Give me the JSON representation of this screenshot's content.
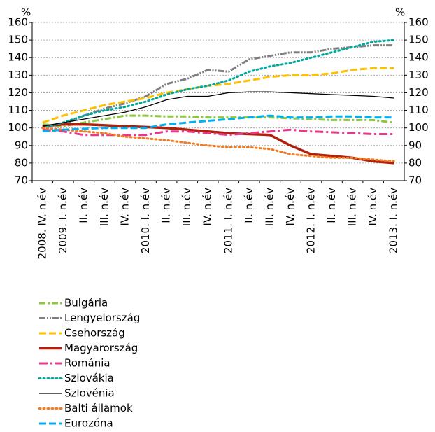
{
  "chart_data": {
    "type": "line",
    "y_label": "%",
    "y2_label": "%",
    "categories": [
      "2008. IV. n.év",
      "2009. I. n.év",
      "II. n.év",
      "III. n.év",
      "IV. n.év",
      "2010. I. n.év",
      "II. n.év",
      "III. n.év",
      "IV. n.év",
      "2011. I. n.év",
      "II. n.év",
      "III. n.év",
      "IV. n.év",
      "2012. I. n.év",
      "II. n.év",
      "III. n.év",
      "IV. n.év",
      "2013. I. n.év"
    ],
    "ylim": [
      70,
      160
    ],
    "yticks": [
      70,
      80,
      90,
      100,
      110,
      120,
      130,
      140,
      150,
      160
    ],
    "y2lim": [
      70,
      160
    ],
    "y2ticks": [
      70,
      80,
      90,
      100,
      110,
      120,
      130,
      140,
      150,
      160
    ],
    "grid": true,
    "series": [
      {
        "name": "Bulgária",
        "color": "#8dc63f",
        "line_style": "dash-dot",
        "values": [
          102,
          101,
          103,
          105,
          107,
          107,
          106.5,
          106.5,
          106,
          106,
          106,
          106,
          105.5,
          105,
          104.5,
          104.5,
          104.5,
          103
        ]
      },
      {
        "name": "Lengyelország",
        "color": "#7f7f7f",
        "line_style": "dash-dot-dot",
        "values": [
          101,
          102,
          107,
          111,
          114,
          118,
          125,
          128,
          133,
          132,
          139,
          141,
          143,
          143,
          145,
          146,
          147,
          147
        ]
      },
      {
        "name": "Csehország",
        "color": "#ffc000",
        "line_style": "dashed",
        "values": [
          103,
          107,
          110,
          113,
          115,
          117,
          120,
          122,
          124,
          125,
          127,
          129,
          130,
          130,
          131,
          133,
          134,
          134
        ]
      },
      {
        "name": "Magyarország",
        "color": "#b0200c",
        "line_style": "thick",
        "values": [
          101,
          102,
          102,
          101.5,
          101,
          100.5,
          100,
          99,
          98,
          97,
          96.5,
          96,
          90,
          85,
          84,
          83,
          81,
          80
        ]
      },
      {
        "name": "Románia",
        "color": "#e8388a",
        "line_style": "long-dash-dot",
        "values": [
          99,
          98,
          96,
          96,
          96,
          96,
          98,
          98,
          97,
          96,
          97,
          98,
          99,
          98,
          97.5,
          97,
          96.5,
          96.5
        ]
      },
      {
        "name": "Szlovákia",
        "color": "#00a99d",
        "line_style": "dotted",
        "values": [
          100,
          103,
          107,
          110,
          112,
          115,
          119,
          122,
          124,
          127,
          132,
          135,
          137,
          140,
          143,
          146,
          149,
          150
        ]
      },
      {
        "name": "Szlovénia",
        "color": "#000000",
        "line_style": "thin",
        "values": [
          101,
          103,
          105,
          107,
          109,
          112,
          116,
          118,
          118,
          120,
          120.5,
          120.5,
          120,
          119.5,
          119,
          118.5,
          118,
          117
        ]
      },
      {
        "name": "Balti államok",
        "color": "#f47b20",
        "line_style": "dotted",
        "values": [
          100,
          99,
          98,
          97,
          95,
          94,
          93,
          91.5,
          90,
          89,
          89,
          88,
          85,
          84,
          83,
          83,
          82,
          81
        ]
      },
      {
        "name": "Eurozóna",
        "color": "#00b0f0",
        "line_style": "dashed",
        "values": [
          98,
          99,
          99.5,
          100,
          100,
          100,
          102,
          103,
          104,
          105,
          106,
          107,
          106,
          106,
          106.5,
          106.5,
          106,
          106
        ]
      }
    ]
  }
}
